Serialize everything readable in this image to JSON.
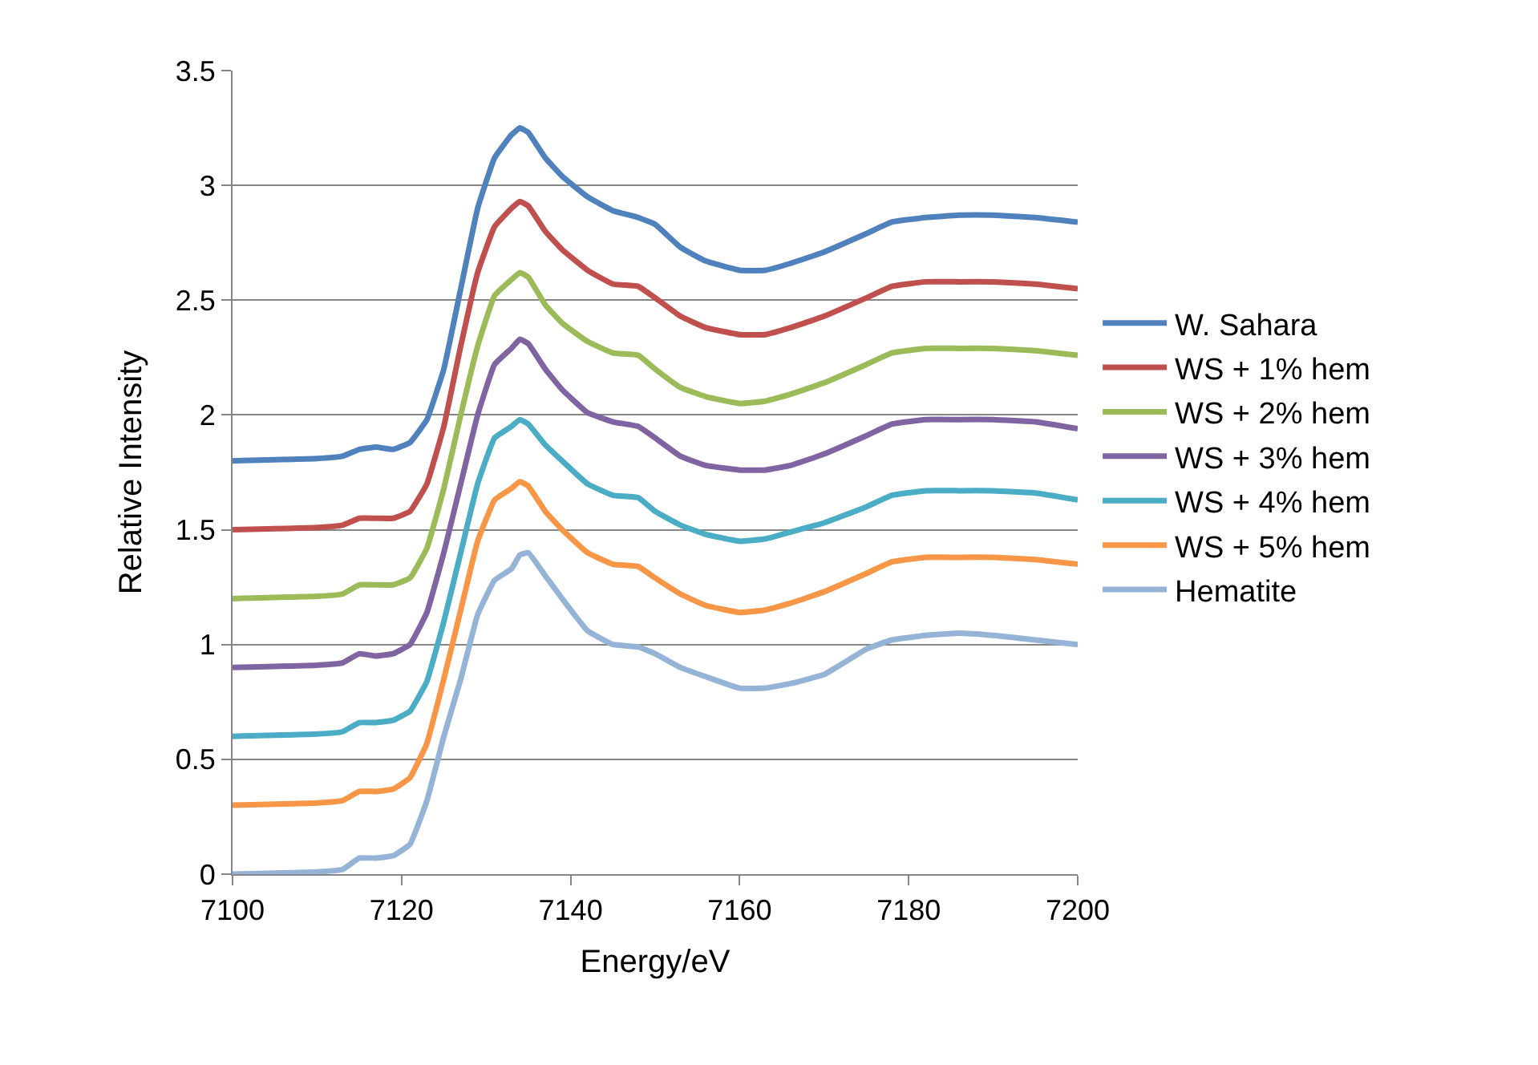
{
  "chart_data": {
    "type": "line",
    "xlabel": "Energy/eV",
    "ylabel": "Relative Intensity",
    "x": [
      7100,
      7110,
      7113,
      7115,
      7117,
      7119,
      7121,
      7123,
      7125,
      7127,
      7129,
      7131,
      7133,
      7134,
      7135,
      7137,
      7139,
      7142,
      7145,
      7148,
      7150,
      7153,
      7156,
      7160,
      7163,
      7166,
      7170,
      7175,
      7178,
      7182,
      7186,
      7190,
      7195,
      7200
    ],
    "series": [
      {
        "name": "W. Sahara",
        "color": "#4f81bd",
        "values": [
          1.8,
          1.81,
          1.82,
          1.85,
          1.86,
          1.85,
          1.88,
          1.98,
          2.2,
          2.55,
          2.9,
          3.12,
          3.22,
          3.25,
          3.23,
          3.12,
          3.04,
          2.95,
          2.89,
          2.86,
          2.83,
          2.73,
          2.67,
          2.63,
          2.63,
          2.66,
          2.71,
          2.79,
          2.84,
          2.86,
          2.87,
          2.87,
          2.86,
          2.84
        ]
      },
      {
        "name": "WS + 1% hem",
        "color": "#c0504d",
        "values": [
          1.5,
          1.51,
          1.52,
          1.55,
          1.55,
          1.55,
          1.58,
          1.7,
          1.95,
          2.3,
          2.62,
          2.82,
          2.9,
          2.93,
          2.91,
          2.8,
          2.72,
          2.63,
          2.57,
          2.56,
          2.51,
          2.43,
          2.38,
          2.35,
          2.35,
          2.38,
          2.43,
          2.51,
          2.56,
          2.58,
          2.58,
          2.58,
          2.57,
          2.55
        ]
      },
      {
        "name": "WS + 2% hem",
        "color": "#9bbb59",
        "values": [
          1.2,
          1.21,
          1.22,
          1.26,
          1.26,
          1.26,
          1.29,
          1.42,
          1.68,
          2.0,
          2.3,
          2.52,
          2.59,
          2.62,
          2.6,
          2.48,
          2.4,
          2.32,
          2.27,
          2.26,
          2.2,
          2.12,
          2.08,
          2.05,
          2.06,
          2.09,
          2.14,
          2.22,
          2.27,
          2.29,
          2.29,
          2.29,
          2.28,
          2.26
        ]
      },
      {
        "name": "WS + 3% hem",
        "color": "#8064a2",
        "values": [
          0.9,
          0.91,
          0.92,
          0.96,
          0.95,
          0.96,
          1.0,
          1.14,
          1.4,
          1.7,
          2.0,
          2.22,
          2.29,
          2.33,
          2.31,
          2.2,
          2.11,
          2.01,
          1.97,
          1.95,
          1.9,
          1.82,
          1.78,
          1.76,
          1.76,
          1.78,
          1.83,
          1.91,
          1.96,
          1.98,
          1.98,
          1.98,
          1.97,
          1.94
        ]
      },
      {
        "name": "WS + 4% hem",
        "color": "#4bacc6",
        "values": [
          0.6,
          0.61,
          0.62,
          0.66,
          0.66,
          0.67,
          0.71,
          0.84,
          1.1,
          1.4,
          1.7,
          1.9,
          1.95,
          1.98,
          1.96,
          1.87,
          1.8,
          1.7,
          1.65,
          1.64,
          1.58,
          1.52,
          1.48,
          1.45,
          1.46,
          1.49,
          1.53,
          1.6,
          1.65,
          1.67,
          1.67,
          1.67,
          1.66,
          1.63
        ]
      },
      {
        "name": "WS + 5% hem",
        "color": "#f79646",
        "values": [
          0.3,
          0.31,
          0.32,
          0.36,
          0.36,
          0.37,
          0.42,
          0.57,
          0.85,
          1.15,
          1.45,
          1.63,
          1.68,
          1.71,
          1.69,
          1.58,
          1.5,
          1.4,
          1.35,
          1.34,
          1.29,
          1.22,
          1.17,
          1.14,
          1.15,
          1.18,
          1.23,
          1.31,
          1.36,
          1.38,
          1.38,
          1.38,
          1.37,
          1.35
        ]
      },
      {
        "name": "Hematite",
        "color": "#95b3d7",
        "values": [
          0.0,
          0.01,
          0.02,
          0.07,
          0.07,
          0.08,
          0.13,
          0.32,
          0.6,
          0.85,
          1.13,
          1.28,
          1.33,
          1.39,
          1.4,
          1.3,
          1.2,
          1.06,
          1.0,
          0.99,
          0.96,
          0.9,
          0.86,
          0.81,
          0.81,
          0.83,
          0.87,
          0.98,
          1.02,
          1.04,
          1.05,
          1.04,
          1.02,
          1.0
        ]
      }
    ],
    "xlim": [
      7100,
      7200
    ],
    "xticks": [
      7100,
      7120,
      7140,
      7160,
      7180,
      7200
    ],
    "ylim": [
      0,
      3.5
    ],
    "yticks": [
      0,
      0.5,
      1,
      1.5,
      2,
      2.5,
      3,
      3.5
    ],
    "grid": "y",
    "legend": "right",
    "marker": "none",
    "line_style": "solid"
  }
}
